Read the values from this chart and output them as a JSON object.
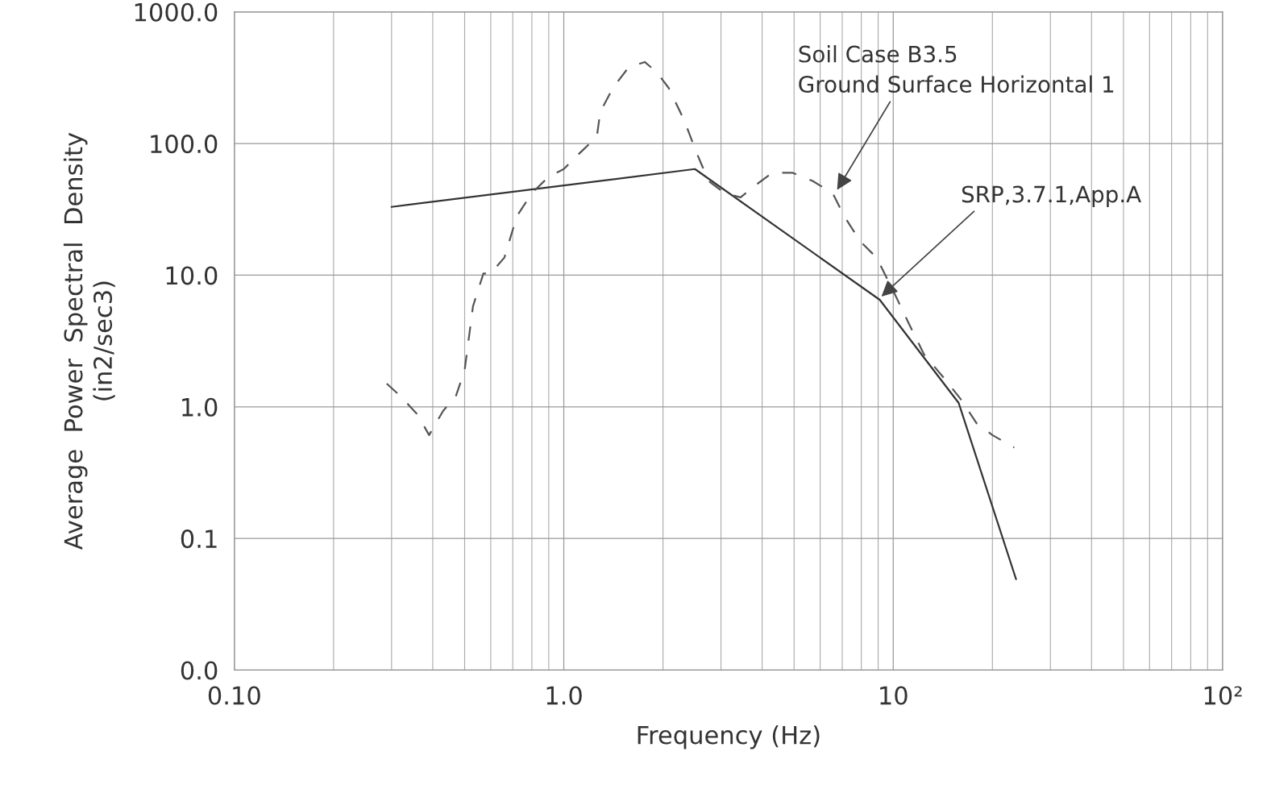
{
  "chart_data": {
    "type": "line",
    "xlabel": "Frequency (Hz)",
    "ylabel": "Average  Power  Spectral  Density\n(in2/sec3)",
    "log": "xy",
    "xlim": [
      0.1,
      100
    ],
    "ylim": [
      0.01,
      1000
    ],
    "xticks": [
      {
        "value": 0.1,
        "label": "0.10"
      },
      {
        "value": 1,
        "label": "1.0"
      },
      {
        "value": 10,
        "label": "10"
      },
      {
        "value": 100,
        "label": "10²"
      }
    ],
    "yticks": [
      {
        "value": 0.01,
        "label": "0.0"
      },
      {
        "value": 0.1,
        "label": "0.1"
      },
      {
        "value": 1,
        "label": "1.0"
      },
      {
        "value": 10,
        "label": "10.0"
      },
      {
        "value": 100,
        "label": "100.0"
      },
      {
        "value": 1000,
        "label": "1000.0"
      }
    ],
    "grid": true,
    "series": [
      {
        "color": "#333333",
        "line_style": "solid",
        "x": [
          0.3,
          2.5,
          9.1,
          15.8,
          23.6
        ],
        "values": [
          33,
          64,
          6.5,
          1.07,
          0.049
        ]
      },
      {
        "color": "#555555",
        "line_style": "dashed",
        "x": [
          0.29,
          0.32,
          0.36,
          0.39,
          0.43,
          0.47,
          0.5,
          0.53,
          0.57,
          0.6,
          0.66,
          0.72,
          0.8,
          0.9,
          1.0,
          1.12,
          1.26,
          1.29,
          1.41,
          1.57,
          1.76,
          1.91,
          2.08,
          2.32,
          2.53,
          2.75,
          3.08,
          3.44,
          3.85,
          4.3,
          4.94,
          5.69,
          6.55,
          7.1,
          7.95,
          8.9,
          9.95,
          11.1,
          12.4,
          14.3,
          16.0,
          17.9,
          20.0,
          23.3
        ],
        "values": [
          1.5,
          1.2,
          0.87,
          0.61,
          0.93,
          1.2,
          1.9,
          5.8,
          10.3,
          10.3,
          13.6,
          28,
          42,
          56,
          64,
          85,
          113,
          174,
          265,
          377,
          416,
          351,
          265,
          150,
          85,
          52,
          42,
          39,
          49,
          60,
          60,
          52,
          42,
          28,
          18,
          13.6,
          7.8,
          4.4,
          2.5,
          1.64,
          1.15,
          0.75,
          0.61,
          0.49
        ]
      }
    ],
    "annotations": [
      {
        "text": "Soil Case B3.5\nGround Surface Horizontal 1",
        "x": 6.7,
        "y": 43
      },
      {
        "text": "SRP,3.7.1,App.A",
        "x": 9.1,
        "y": 6.7
      }
    ]
  }
}
